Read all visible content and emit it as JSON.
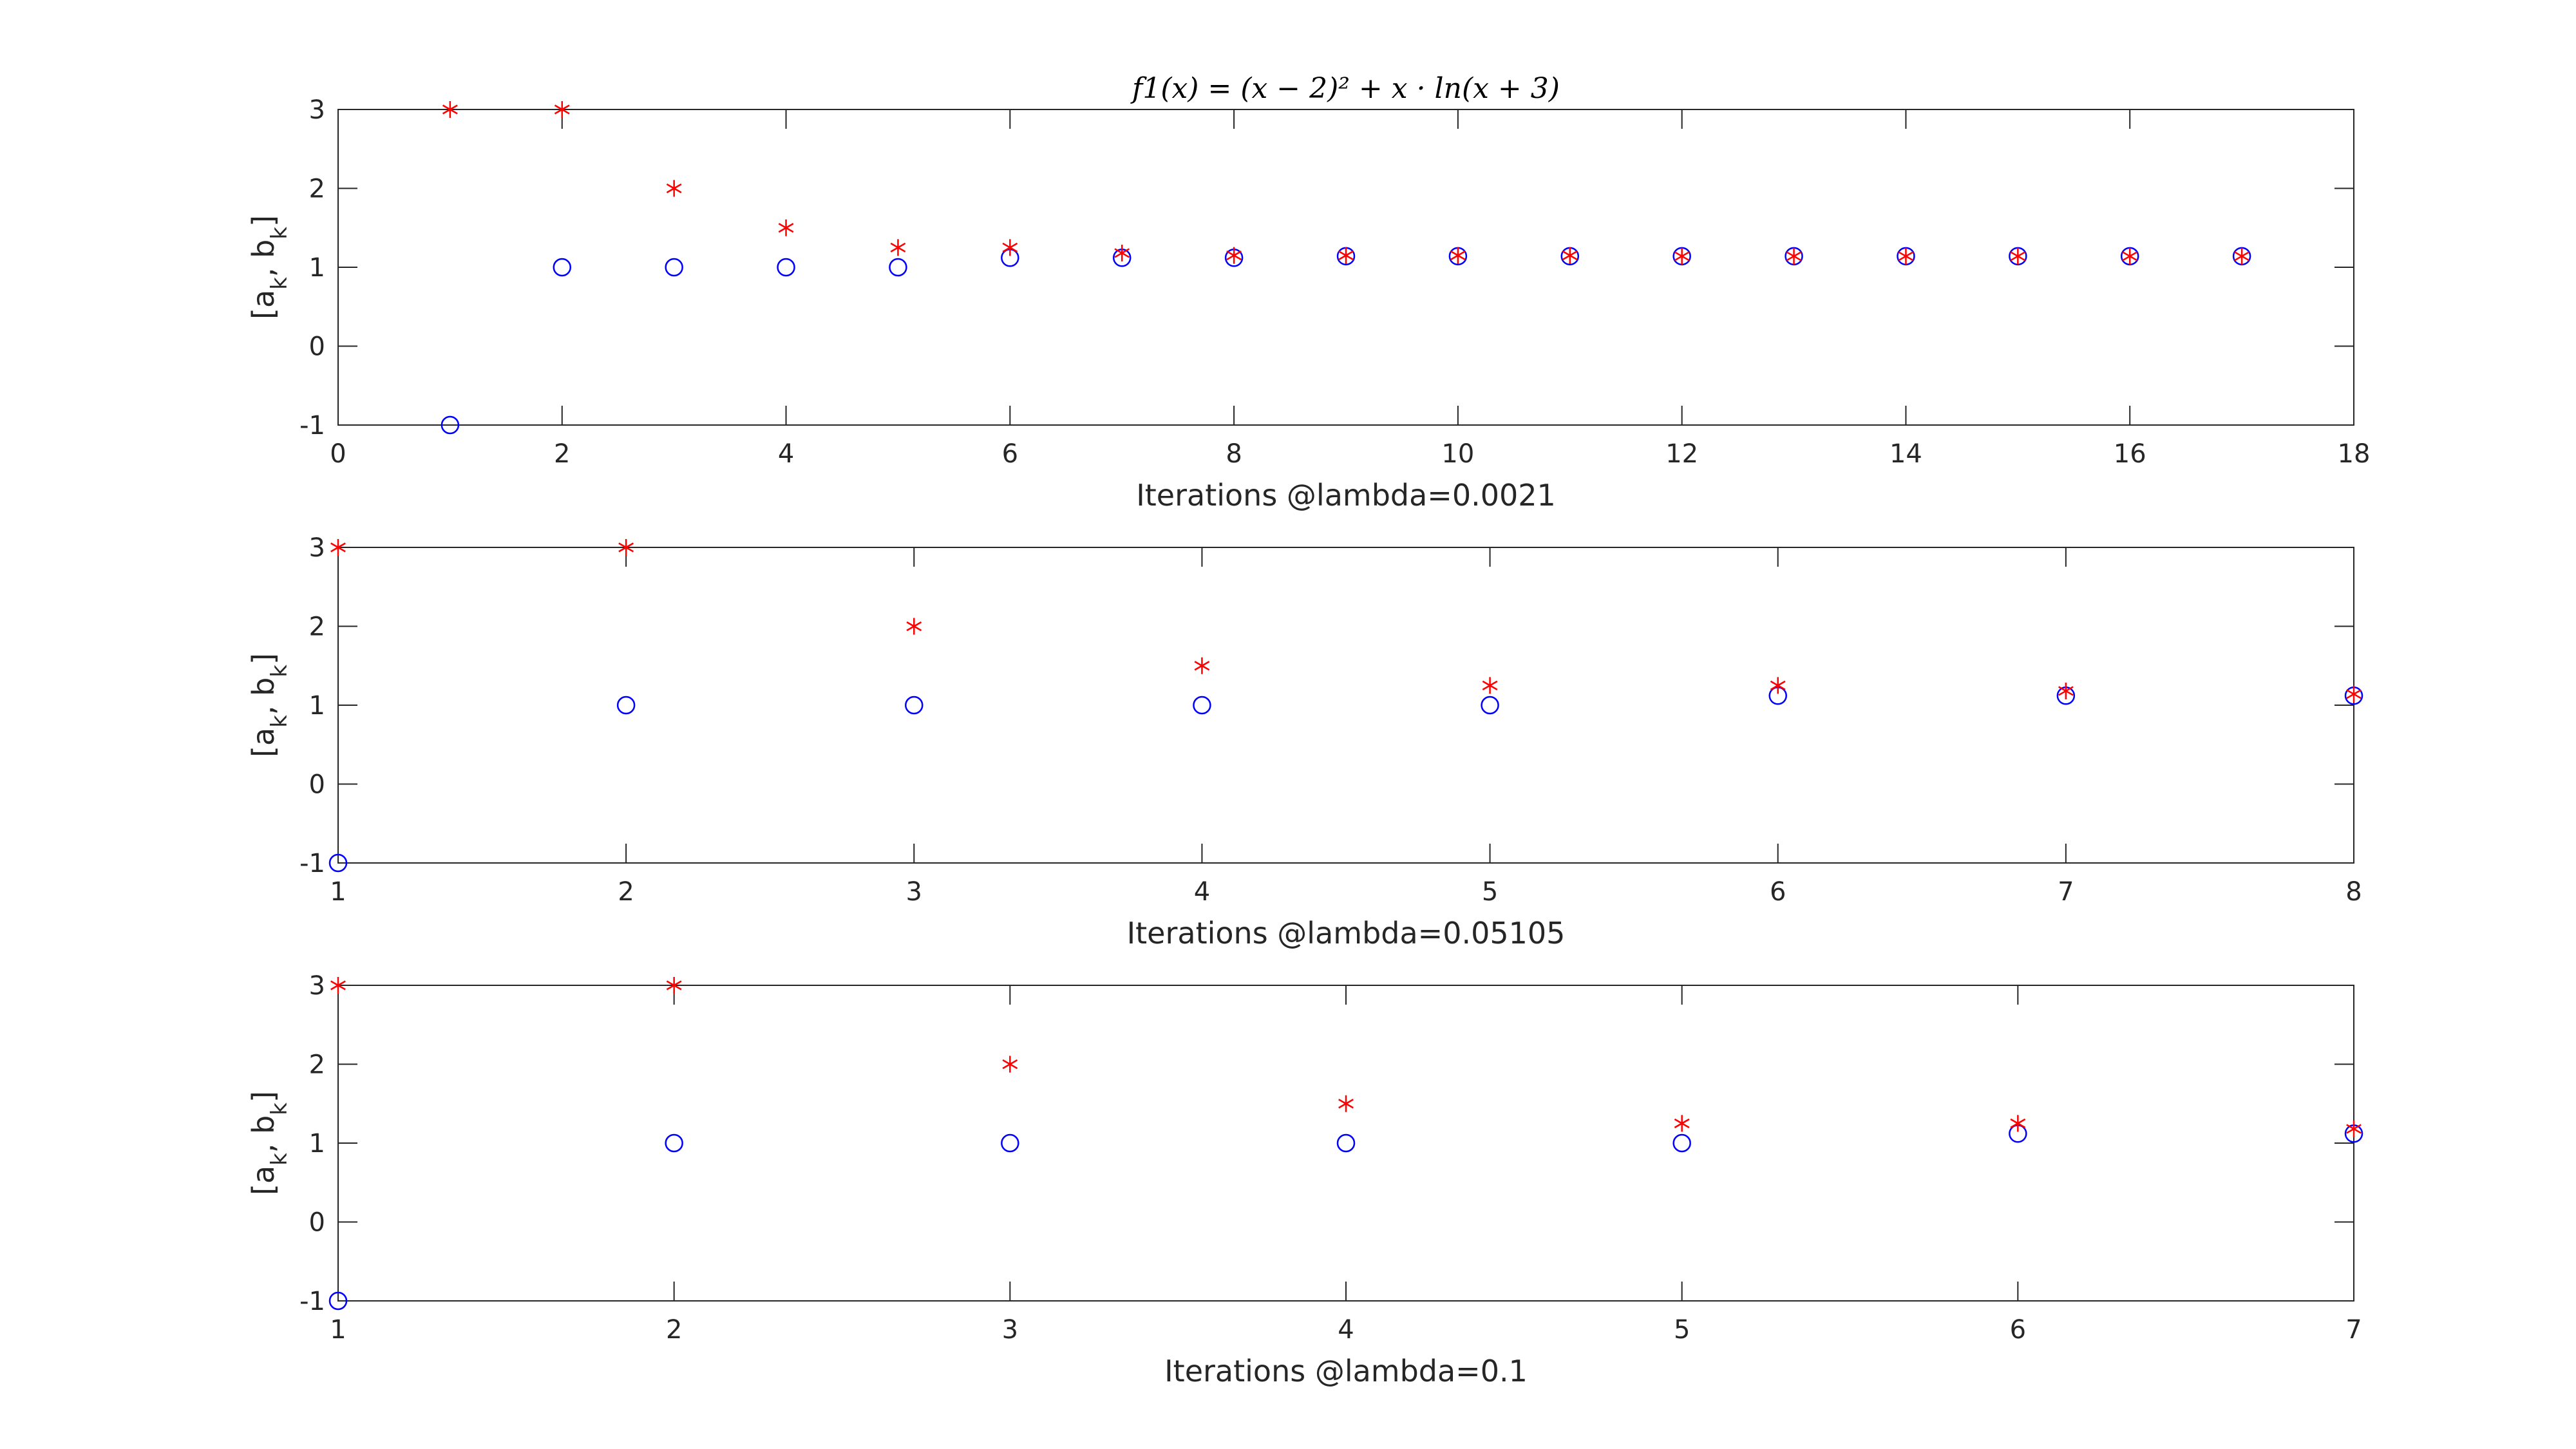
{
  "chart_data": [
    {
      "type": "scatter",
      "title": "f1(x) = (x − 2)² + x · ln(x + 3)",
      "xlabel": "Iterations @lambda=0.0021",
      "ylabel": "[a_k, b_k]",
      "xlim": [
        0,
        18
      ],
      "ylim": [
        -1,
        3
      ],
      "xticks": [
        0,
        2,
        4,
        6,
        8,
        10,
        12,
        14,
        16,
        18
      ],
      "yticks": [
        -1,
        0,
        1,
        2,
        3
      ],
      "grid": false,
      "series": [
        {
          "marker": "circle",
          "color": "#0000ff",
          "x": [
            1,
            2,
            3,
            4,
            5,
            6,
            7,
            8,
            9,
            10,
            11,
            12,
            13,
            14,
            15,
            16,
            17
          ],
          "y": [
            -1,
            1,
            1,
            1,
            1,
            1.12,
            1.12,
            1.12,
            1.14,
            1.14,
            1.14,
            1.14,
            1.14,
            1.14,
            1.14,
            1.14,
            1.14
          ]
        },
        {
          "marker": "asterisk",
          "color": "#ff0000",
          "x": [
            1,
            2,
            3,
            4,
            5,
            6,
            7,
            8,
            9,
            10,
            11,
            12,
            13,
            14,
            15,
            16,
            17
          ],
          "y": [
            3,
            3,
            2,
            1.5,
            1.25,
            1.25,
            1.18,
            1.15,
            1.15,
            1.15,
            1.15,
            1.14,
            1.14,
            1.14,
            1.14,
            1.14,
            1.14
          ]
        }
      ]
    },
    {
      "type": "scatter",
      "title": "",
      "xlabel": "Iterations @lambda=0.05105",
      "ylabel": "[a_k, b_k]",
      "xlim": [
        1,
        8
      ],
      "ylim": [
        -1,
        3
      ],
      "xticks": [
        1,
        2,
        3,
        4,
        5,
        6,
        7,
        8
      ],
      "yticks": [
        -1,
        0,
        1,
        2,
        3
      ],
      "grid": false,
      "series": [
        {
          "marker": "circle",
          "color": "#0000ff",
          "x": [
            1,
            2,
            3,
            4,
            5,
            6,
            7,
            8
          ],
          "y": [
            -1,
            1,
            1,
            1,
            1,
            1.12,
            1.12,
            1.12
          ]
        },
        {
          "marker": "asterisk",
          "color": "#ff0000",
          "x": [
            1,
            2,
            3,
            4,
            5,
            6,
            7,
            8
          ],
          "y": [
            3,
            3,
            2,
            1.5,
            1.25,
            1.25,
            1.18,
            1.14
          ]
        }
      ]
    },
    {
      "type": "scatter",
      "title": "",
      "xlabel": "Iterations @lambda=0.1",
      "ylabel": "[a_k, b_k]",
      "xlim": [
        1,
        7
      ],
      "ylim": [
        -1,
        3
      ],
      "xticks": [
        1,
        2,
        3,
        4,
        5,
        6,
        7
      ],
      "yticks": [
        -1,
        0,
        1,
        2,
        3
      ],
      "grid": false,
      "series": [
        {
          "marker": "circle",
          "color": "#0000ff",
          "x": [
            1,
            2,
            3,
            4,
            5,
            6,
            7
          ],
          "y": [
            -1,
            1,
            1,
            1,
            1,
            1.12,
            1.12
          ]
        },
        {
          "marker": "asterisk",
          "color": "#ff0000",
          "x": [
            1,
            2,
            3,
            4,
            5,
            6,
            7
          ],
          "y": [
            3,
            3,
            2,
            1.5,
            1.25,
            1.25,
            1.18
          ]
        }
      ]
    }
  ]
}
